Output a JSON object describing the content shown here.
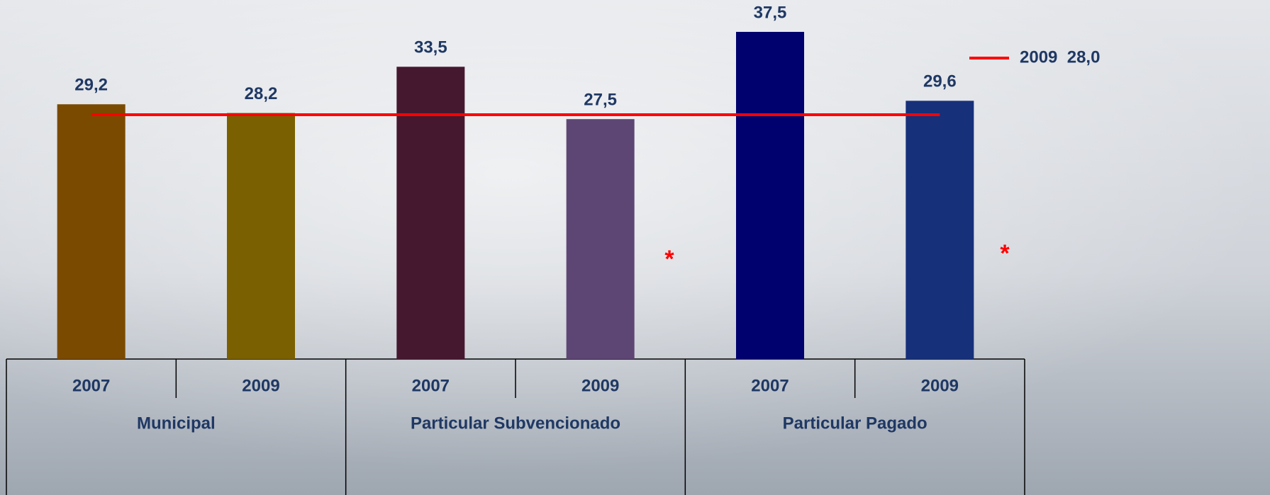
{
  "chart_data": {
    "type": "bar",
    "categories": [
      "2007",
      "2009",
      "2007",
      "2009",
      "2007",
      "2009"
    ],
    "groups": [
      "Municipal",
      "Particular Subvencionado",
      "Particular Pagado"
    ],
    "values": [
      29.2,
      28.2,
      33.5,
      27.5,
      37.5,
      29.6
    ],
    "value_labels": [
      "29,2",
      "28,2",
      "33,5",
      "27,5",
      "37,5",
      "29,6"
    ],
    "colors": [
      "#7a4a00",
      "#7a6000",
      "#461830",
      "#5e4674",
      "#00006e",
      "#16307a"
    ],
    "reference_line": {
      "name": "2009  28,0",
      "value": 28.0,
      "color": "#ff0000"
    },
    "annotations": [
      "*",
      "*"
    ]
  }
}
